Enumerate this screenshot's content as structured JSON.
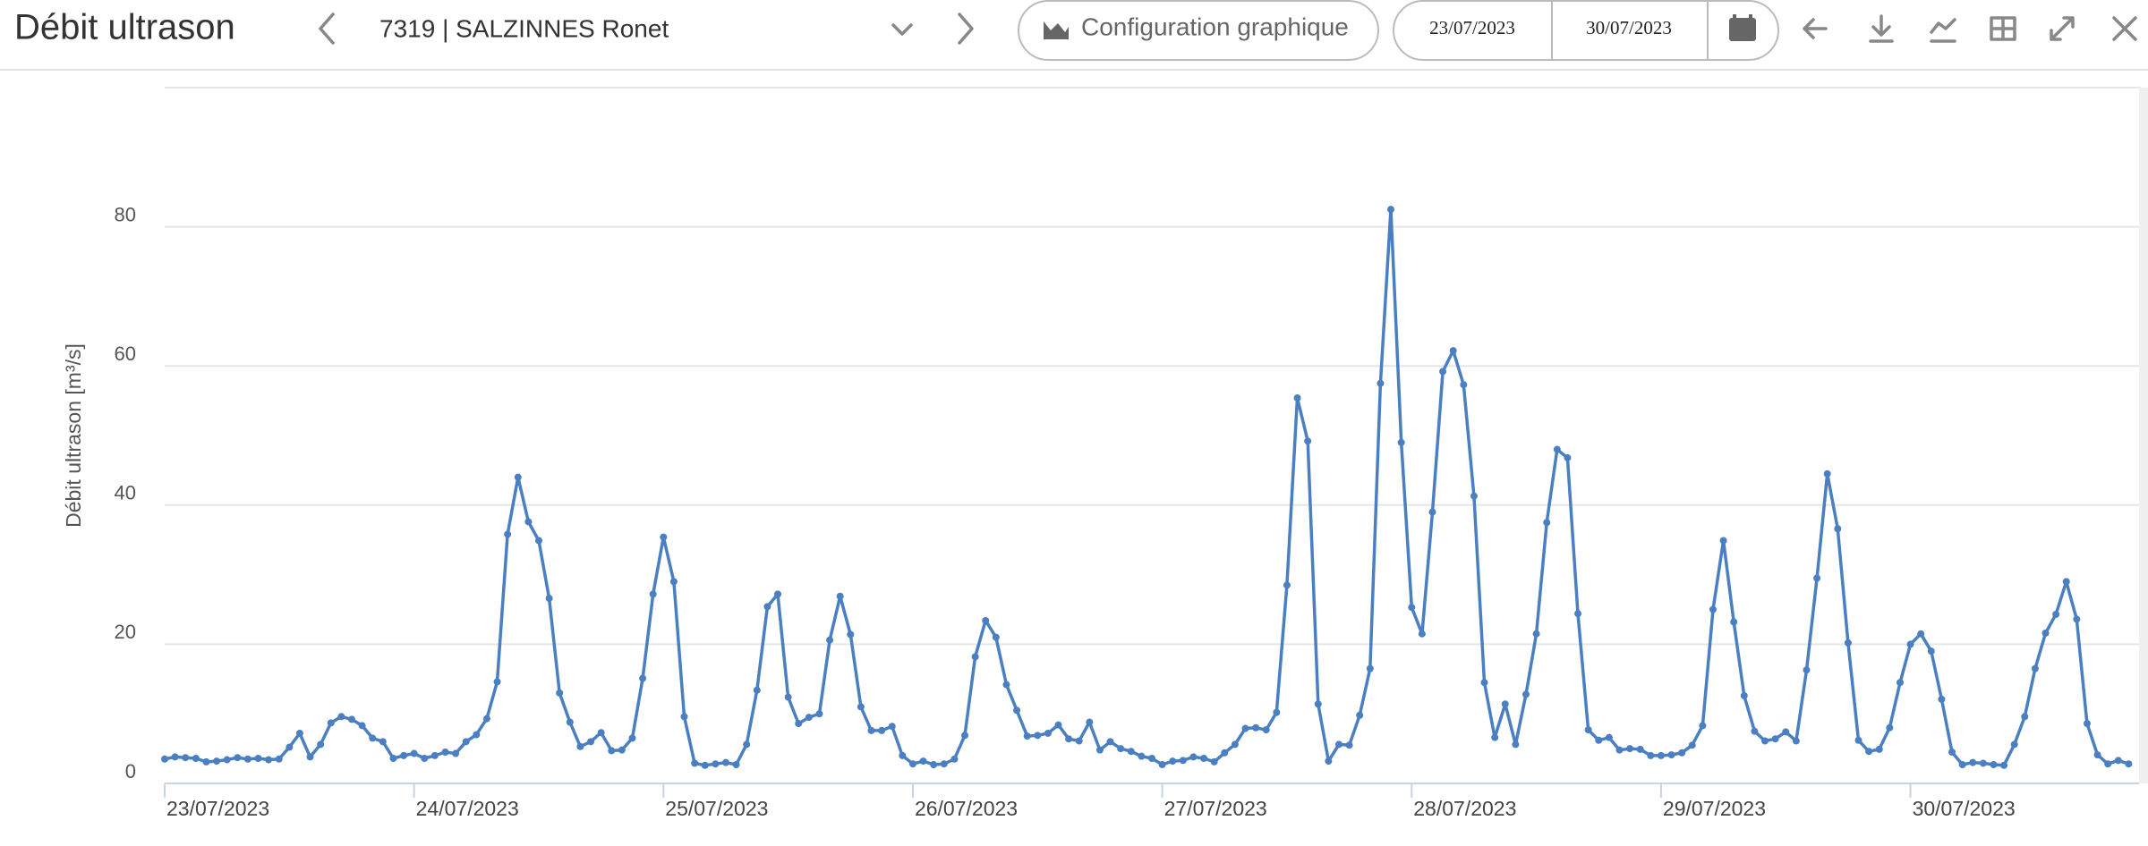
{
  "header": {
    "title": "Débit ultrason",
    "station": "7319 | SALZINNES Ronet",
    "config_button": "Configuration graphique",
    "date_start": "23/07/2023",
    "date_end": "30/07/2023"
  },
  "chart_data": {
    "type": "line",
    "y_label": "Débit ultrason [m³/s]",
    "color": "#4a7fc1",
    "grid": true,
    "ylim": [
      0,
      100
    ],
    "yticks": [
      0,
      20,
      40,
      60,
      80
    ],
    "xlim": [
      0,
      190
    ],
    "xticks": [
      {
        "value": 0,
        "label": "23/07/2023"
      },
      {
        "value": 24,
        "label": "24/07/2023"
      },
      {
        "value": 48,
        "label": "25/07/2023"
      },
      {
        "value": 72,
        "label": "26/07/2023"
      },
      {
        "value": 96,
        "label": "27/07/2023"
      },
      {
        "value": 120,
        "label": "28/07/2023"
      },
      {
        "value": 144,
        "label": "29/07/2023"
      },
      {
        "value": 168,
        "label": "30/07/2023"
      }
    ],
    "values": [
      3.5,
      3.8,
      3.7,
      3.6,
      3.1,
      3.2,
      3.4,
      3.7,
      3.5,
      3.6,
      3.4,
      3.5,
      5.2,
      7.2,
      3.8,
      5.6,
      8.7,
      9.6,
      9.2,
      8.3,
      6.5,
      6.0,
      3.6,
      4.0,
      4.3,
      3.6,
      4.0,
      4.5,
      4.3,
      6.0,
      7.0,
      9.3,
      14.6,
      35.8,
      44.0,
      37.6,
      34.9,
      26.6,
      13.0,
      8.8,
      5.3,
      6.0,
      7.3,
      4.7,
      4.8,
      6.5,
      15.1,
      27.2,
      35.4,
      29.0,
      9.6,
      2.9,
      2.6,
      2.8,
      3.0,
      2.7,
      5.6,
      13.4,
      25.4,
      27.2,
      12.4,
      8.6,
      9.5,
      10.0,
      20.6,
      26.9,
      21.4,
      11.0,
      7.6,
      7.6,
      8.2,
      4.0,
      2.8,
      3.2,
      2.7,
      2.8,
      3.5,
      6.9,
      18.2,
      23.4,
      21.0,
      14.2,
      10.5,
      6.8,
      6.9,
      7.2,
      8.4,
      6.4,
      6.1,
      8.8,
      4.8,
      6.0,
      5.0,
      4.6,
      3.9,
      3.6,
      2.7,
      3.2,
      3.3,
      3.8,
      3.6,
      3.1,
      4.4,
      5.6,
      7.9,
      8.0,
      7.7,
      10.2,
      28.5,
      55.4,
      49.2,
      11.4,
      3.2,
      5.6,
      5.5,
      9.8,
      16.5,
      57.5,
      82.5,
      49.0,
      25.3,
      21.5,
      39.0,
      59.2,
      62.2,
      57.3,
      41.3,
      14.5,
      6.6,
      11.4,
      5.6,
      12.8,
      21.5,
      37.5,
      48.0,
      46.8,
      24.4,
      7.7,
      6.2,
      6.6,
      4.8,
      5.0,
      4.9,
      4.0,
      4.0,
      4.1,
      4.4,
      5.5,
      8.3,
      25.0,
      34.9,
      23.2,
      12.6,
      7.5,
      6.1,
      6.4,
      7.4,
      6.1,
      16.3,
      29.5,
      44.5,
      36.6,
      20.2,
      6.2,
      4.6,
      4.9,
      8.0,
      14.5,
      20.0,
      21.5,
      19.0,
      12.1,
      4.5,
      2.7,
      3.0,
      2.9,
      2.7,
      2.6,
      5.6,
      9.6,
      16.5,
      21.6,
      24.3,
      29.0,
      23.6,
      8.6,
      4.1,
      2.8,
      3.3,
      2.8
    ]
  }
}
